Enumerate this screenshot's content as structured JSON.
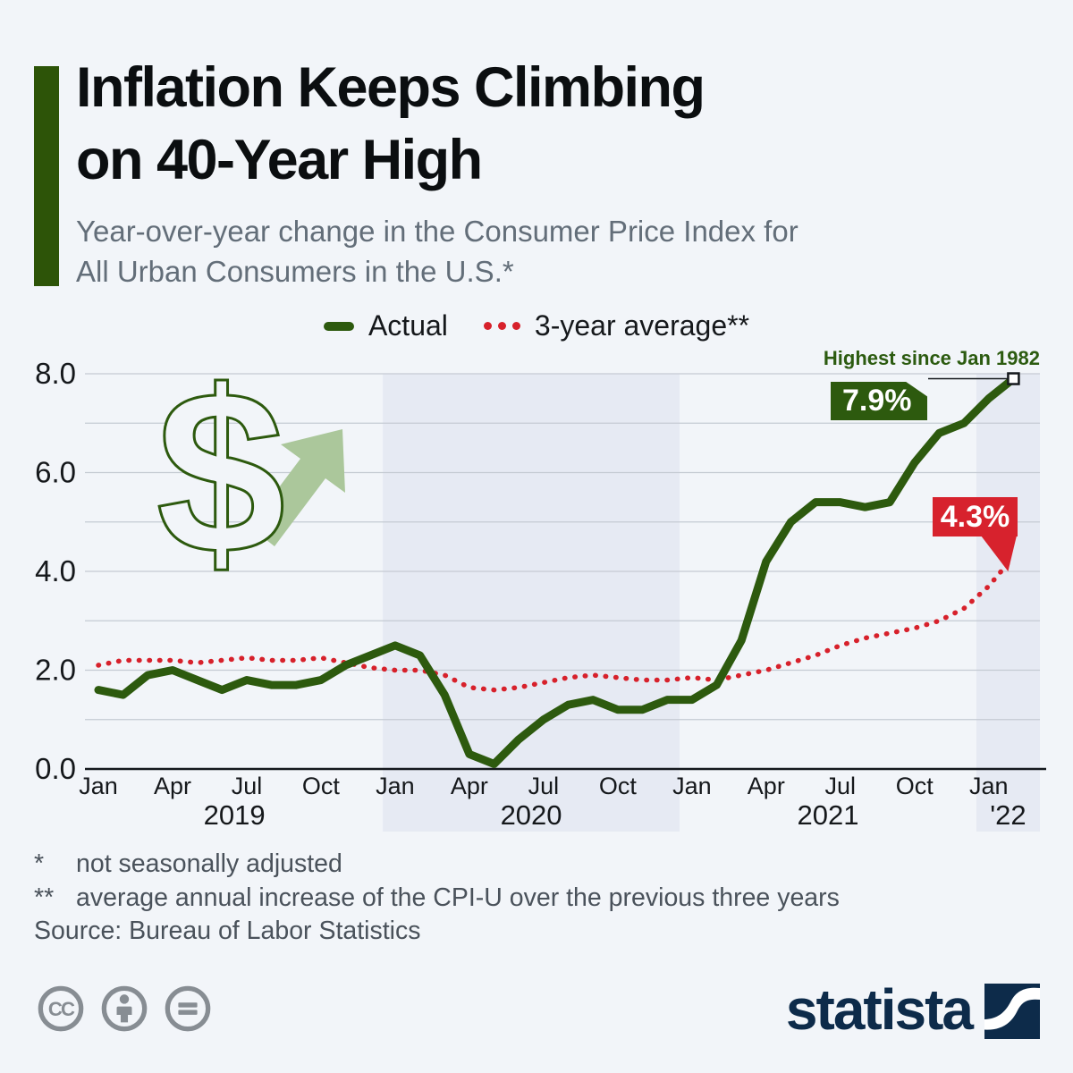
{
  "header": {
    "title": "Inflation Keeps Climbing\non 40-Year High",
    "subtitle": "Year-over-year change in the Consumer Price Index for\nAll Urban Consumers in the U.S.*"
  },
  "legend": [
    {
      "label": "Actual",
      "color": "#2d5a0e",
      "style": "solid"
    },
    {
      "label": "3-year average**",
      "color": "#d7212b",
      "style": "dotted"
    }
  ],
  "colors": {
    "background": "#f2f5f9",
    "band": "#e6eaf3",
    "grid": "#c5cbd3",
    "axis": "#14181c",
    "actual": "#2d5a0e",
    "average": "#d7212b",
    "arrow": "#abc79b",
    "accent_bar": "#2d5408",
    "brand_navy": "#0d2b4a"
  },
  "chart_data": {
    "type": "line",
    "title": "Year-over-year change in the Consumer Price Index for All Urban Consumers in the U.S.",
    "x_start": "Jan 2019",
    "x_end": "Feb 2022",
    "ylim": [
      0,
      8
    ],
    "yticks": [
      0,
      2,
      4,
      6,
      8
    ],
    "grid": true,
    "month_ticks": [
      {
        "month_index": 0,
        "label": "Jan"
      },
      {
        "month_index": 3,
        "label": "Apr"
      },
      {
        "month_index": 6,
        "label": "Jul"
      },
      {
        "month_index": 9,
        "label": "Oct"
      },
      {
        "month_index": 12,
        "label": "Jan"
      },
      {
        "month_index": 15,
        "label": "Apr"
      },
      {
        "month_index": 18,
        "label": "Jul"
      },
      {
        "month_index": 21,
        "label": "Oct"
      },
      {
        "month_index": 24,
        "label": "Jan"
      },
      {
        "month_index": 27,
        "label": "Apr"
      },
      {
        "month_index": 30,
        "label": "Jul"
      },
      {
        "month_index": 33,
        "label": "Oct"
      },
      {
        "month_index": 36,
        "label": "Jan"
      }
    ],
    "years": [
      {
        "label": "2019",
        "start_month": 0,
        "shaded": false
      },
      {
        "label": "2020",
        "start_month": 12,
        "shaded": true
      },
      {
        "label": "2021",
        "start_month": 24,
        "shaded": false
      },
      {
        "label": "'22",
        "start_month": 36,
        "shaded": true
      }
    ],
    "series": [
      {
        "name": "Actual",
        "color": "#2d5a0e",
        "style": "solid",
        "values": [
          1.6,
          1.5,
          1.9,
          2.0,
          1.8,
          1.6,
          1.8,
          1.7,
          1.7,
          1.8,
          2.1,
          2.3,
          2.5,
          2.3,
          1.5,
          0.3,
          0.1,
          0.6,
          1.0,
          1.3,
          1.4,
          1.2,
          1.2,
          1.4,
          1.4,
          1.7,
          2.6,
          4.2,
          5.0,
          5.4,
          5.4,
          5.3,
          5.4,
          6.2,
          6.8,
          7.0,
          7.5,
          7.9
        ]
      },
      {
        "name": "3-year average",
        "color": "#d7212b",
        "style": "dotted",
        "values": [
          2.1,
          2.2,
          2.2,
          2.2,
          2.15,
          2.2,
          2.25,
          2.2,
          2.2,
          2.25,
          2.15,
          2.05,
          2.0,
          2.0,
          1.9,
          1.65,
          1.6,
          1.65,
          1.75,
          1.85,
          1.9,
          1.85,
          1.8,
          1.8,
          1.85,
          1.8,
          1.9,
          2.0,
          2.15,
          2.3,
          2.5,
          2.65,
          2.75,
          2.85,
          3.0,
          3.25,
          3.7,
          4.3
        ]
      }
    ],
    "annotations": {
      "highest_note": "Highest since Jan 1982",
      "actual_last_label": "7.9%",
      "average_last_label": "4.3%"
    }
  },
  "footnotes": [
    {
      "marker": "*",
      "text": "not seasonally adjusted"
    },
    {
      "marker": "**",
      "text": "average annual increase of the CPI-U over the previous three years"
    }
  ],
  "source": "Source: Bureau of Labor Statistics",
  "branding": {
    "logo_text": "statista"
  }
}
